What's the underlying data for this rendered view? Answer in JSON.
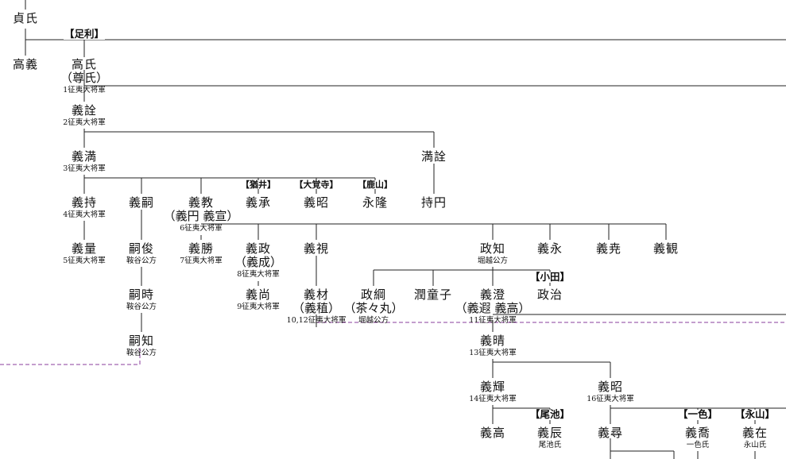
{
  "labels": {
    "ashikaga": "【足利】",
    "kitsuregawa": "【猶井】",
    "daikakuji": "【大覚寺】",
    "shikayama": "【鹿山】",
    "oda": "【小田】",
    "ike": "【尾池】",
    "isshiki": "【一色】",
    "nagayama": "【永山】"
  },
  "people": {
    "sadauji": {
      "name": "貞氏"
    },
    "takayoshi": {
      "name": "高義"
    },
    "takauji": {
      "name": "高氏",
      "alias": "（尊氏）",
      "title": "1征夷大将軍"
    },
    "yoshiakira": {
      "name": "義詮",
      "title": "2征夷大将軍"
    },
    "yoshimitsu": {
      "name": "義満",
      "title": "3征夷大将軍"
    },
    "mitsuakira": {
      "name": "満詮"
    },
    "yoshimochi": {
      "name": "義持",
      "title": "4征夷大将軍"
    },
    "yoshitsugu": {
      "name": "義嗣"
    },
    "yoshinori": {
      "name": "義教",
      "alias": "（義円 義宣）",
      "title": "6征夷大将軍"
    },
    "gisho": {
      "name": "義承"
    },
    "gisho2": {
      "name": "義昭"
    },
    "eiryu": {
      "name": "永隆"
    },
    "jien": {
      "name": "持円"
    },
    "yoshikazu": {
      "name": "義量",
      "title": "5征夷大将軍"
    },
    "tsuguyoshi": {
      "name": "嗣俊",
      "title": "鞍谷公方"
    },
    "yoshikatsu": {
      "name": "義勝",
      "title": "7征夷大将軍"
    },
    "yoshimasa": {
      "name": "義政",
      "alias": "（義成）",
      "title": "8征夷大将軍"
    },
    "yoshimi": {
      "name": "義視"
    },
    "masatomo": {
      "name": "政知",
      "title": "堀越公方"
    },
    "gie": {
      "name": "義永"
    },
    "giyao": {
      "name": "義尭"
    },
    "gikan": {
      "name": "義観"
    },
    "tsugutoki": {
      "name": "嗣時",
      "title": "鞍谷公方"
    },
    "yoshihisa": {
      "name": "義尚",
      "title": "9征夷大将軍"
    },
    "yoshiki": {
      "name": "義材",
      "alias": "（義稙）",
      "title": "10,12征夷大将軍"
    },
    "chachamaru": {
      "name": "政綱",
      "alias": "（茶々丸）",
      "title": "堀越公方"
    },
    "junkoshi": {
      "name": "潤童子"
    },
    "yoshizumi": {
      "name": "義澄",
      "alias": "（義遐 義高）",
      "title": "11征夷大将軍"
    },
    "masaharu": {
      "name": "政治"
    },
    "tsugutomo": {
      "name": "嗣知",
      "title": "鞍谷公方"
    },
    "yoshiharu": {
      "name": "義晴",
      "title": "13征夷大将軍"
    },
    "yoshiteru": {
      "name": "義輝",
      "title": "14征夷大将軍"
    },
    "yoshiaki": {
      "name": "義昭",
      "title": "16征夷大将軍"
    },
    "yoshitaka": {
      "name": "義高"
    },
    "yoshitoki": {
      "name": "義辰",
      "title": "尾池氏"
    },
    "yoshihiro": {
      "name": "義尋"
    },
    "yoshika": {
      "name": "義喬",
      "title": "一色氏"
    },
    "yoshiari": {
      "name": "義在",
      "title": "永山氏"
    }
  }
}
